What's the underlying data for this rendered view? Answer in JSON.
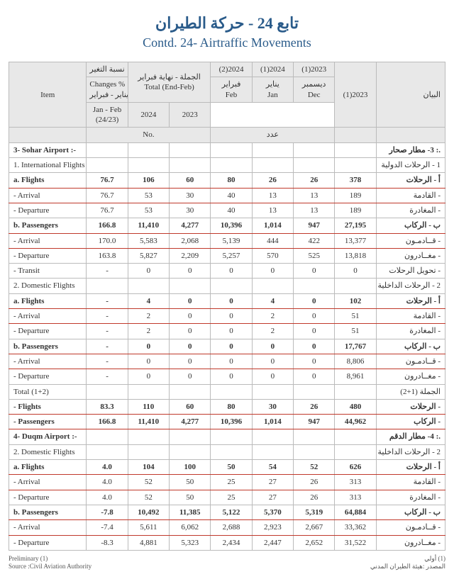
{
  "titles": {
    "ar": "تابع 24 - حركة الطيران",
    "en": "Contd. 24- Airtraffic Movements"
  },
  "header": {
    "item": "Item",
    "bayan": "البيان",
    "chg_ar": "نسبة التغير",
    "chg_en": "Changes %",
    "chg_period_ar": "يناير - فبراير",
    "chg_period_en": "Jan - Feb",
    "chg_ratio": "(24/23)",
    "tot_ar": "الجملة - نهاية فبراير",
    "tot_en": "Total (End-Feb)",
    "y24": "2024",
    "y23": "2023",
    "m2_en": "فبراير",
    "m2_a": "Feb",
    "m1_en": "يناير",
    "m1_a": "Jan",
    "m0_en": "ديسمبر",
    "m0_a": "Dec",
    "sup2024a": "(2)2024",
    "sup2024b": "(1)2024",
    "sup2023": "(1)2023",
    "full23": "(1)2023",
    "no": "No.",
    "adad": "عدد"
  },
  "rows": [
    {
      "en": "3- Sohar Airport :-",
      "ar": ".: 3- مطار صحار",
      "b": 1,
      "v": [
        "",
        "",
        "",
        "",
        "",
        "",
        ""
      ]
    },
    {
      "en": "1. International Flights",
      "ar": "1 - الرحلات الدولية",
      "v": [
        "",
        "",
        "",
        "",
        "",
        "",
        ""
      ]
    },
    {
      "en": "a.  Flights",
      "ar": "أ - الرحلات",
      "b": 1,
      "r": 1,
      "v": [
        "76.7",
        "106",
        "60",
        "80",
        "26",
        "26",
        "378"
      ]
    },
    {
      "en": "- Arrival",
      "ar": "- القادمة",
      "r": 1,
      "v": [
        "76.7",
        "53",
        "30",
        "40",
        "13",
        "13",
        "189"
      ]
    },
    {
      "en": "- Departure",
      "ar": "- المغادرة",
      "v": [
        "76.7",
        "53",
        "30",
        "40",
        "13",
        "13",
        "189"
      ]
    },
    {
      "en": "b. Passengers",
      "ar": "ب - الركاب",
      "b": 1,
      "r": 1,
      "v": [
        "166.8",
        "11,410",
        "4,277",
        "10,396",
        "1,014",
        "947",
        "27,195"
      ]
    },
    {
      "en": "- Arrival",
      "ar": "- قــادمـون",
      "r": 1,
      "v": [
        "170.0",
        "5,583",
        "2,068",
        "5,139",
        "444",
        "422",
        "13,377"
      ]
    },
    {
      "en": "- Departure",
      "ar": "- مغــادرون",
      "v": [
        "163.8",
        "5,827",
        "2,209",
        "5,257",
        "570",
        "525",
        "13,818"
      ]
    },
    {
      "en": "- Transit",
      "ar": "- تحويل الرحلات",
      "v": [
        "-",
        "0",
        "0",
        "0",
        "0",
        "0",
        "0"
      ]
    },
    {
      "en": "2. Domestic Flights",
      "ar": "2 - الرحلات الداخلية",
      "v": [
        "",
        "",
        "",
        "",
        "",
        "",
        ""
      ]
    },
    {
      "en": "a.  Flights",
      "ar": "أ - الرحلات",
      "b": 1,
      "r": 1,
      "v": [
        "-",
        "4",
        "0",
        "0",
        "4",
        "0",
        "102"
      ]
    },
    {
      "en": "- Arrival",
      "ar": "- القادمة",
      "r": 1,
      "v": [
        "-",
        "2",
        "0",
        "0",
        "2",
        "0",
        "51"
      ]
    },
    {
      "en": "- Departure",
      "ar": "- المغادرة",
      "v": [
        "-",
        "2",
        "0",
        "0",
        "2",
        "0",
        "51"
      ]
    },
    {
      "en": "b. Passengers",
      "ar": "ب - الركاب",
      "b": 1,
      "r": 1,
      "v": [
        "-",
        "0",
        "0",
        "0",
        "0",
        "0",
        "17,767"
      ]
    },
    {
      "en": "- Arrival",
      "ar": "- قــادمـون",
      "r": 1,
      "v": [
        "-",
        "0",
        "0",
        "0",
        "0",
        "0",
        "8,806"
      ]
    },
    {
      "en": "- Departure",
      "ar": "- مغــادرون",
      "v": [
        "-",
        "0",
        "0",
        "0",
        "0",
        "0",
        "8,961"
      ]
    },
    {
      "en": "Total (1+2)",
      "ar": "الجملة (1+2)",
      "v": [
        "",
        "",
        "",
        "",
        "",
        "",
        ""
      ]
    },
    {
      "en": "- Flights",
      "ar": "- الرحلات",
      "b": 1,
      "r": 1,
      "v": [
        "83.3",
        "110",
        "60",
        "80",
        "30",
        "26",
        "480"
      ]
    },
    {
      "en": "- Passengers",
      "ar": "- الركاب",
      "b": 1,
      "r": 1,
      "v": [
        "166.8",
        "11,410",
        "4,277",
        "10,396",
        "1,014",
        "947",
        "44,962"
      ]
    },
    {
      "en": "4- Duqm Airport :-",
      "ar": ".: 4- مطار الدقم",
      "b": 1,
      "v": [
        "",
        "",
        "",
        "",
        "",
        "",
        ""
      ]
    },
    {
      "en": "2. Domestic Flights",
      "ar": "2 - الرحلات الداخلية",
      "v": [
        "",
        "",
        "",
        "",
        "",
        "",
        ""
      ]
    },
    {
      "en": "a.  Flights",
      "ar": "أ - الرحلات",
      "b": 1,
      "r": 1,
      "v": [
        "4.0",
        "104",
        "100",
        "50",
        "54",
        "52",
        "626"
      ]
    },
    {
      "en": "- Arrival",
      "ar": "- القادمة",
      "r": 1,
      "v": [
        "4.0",
        "52",
        "50",
        "25",
        "27",
        "26",
        "313"
      ]
    },
    {
      "en": "- Departure",
      "ar": "- المغادرة",
      "v": [
        "4.0",
        "52",
        "50",
        "25",
        "27",
        "26",
        "313"
      ]
    },
    {
      "en": "b. Passengers",
      "ar": "ب - الركاب",
      "b": 1,
      "r": 1,
      "v": [
        "-7.8",
        "10,492",
        "11,385",
        "5,122",
        "5,370",
        "5,319",
        "64,884"
      ]
    },
    {
      "en": "- Arrival",
      "ar": "- قــادمـون",
      "r": 1,
      "v": [
        "-7.4",
        "5,611",
        "6,062",
        "2,688",
        "2,923",
        "2,667",
        "33,362"
      ]
    },
    {
      "en": "- Departure",
      "ar": "- مغــادرون",
      "v": [
        "-8.3",
        "4,881",
        "5,323",
        "2,434",
        "2,447",
        "2,652",
        "31,522"
      ]
    }
  ],
  "footer": {
    "prelim_en": "Preliminary (1)",
    "prelim_ar": "(1) أولي",
    "src_en": "Source :Civil Aviation Authority",
    "src_ar": "المصدر :هيئة الطيران المدني"
  }
}
